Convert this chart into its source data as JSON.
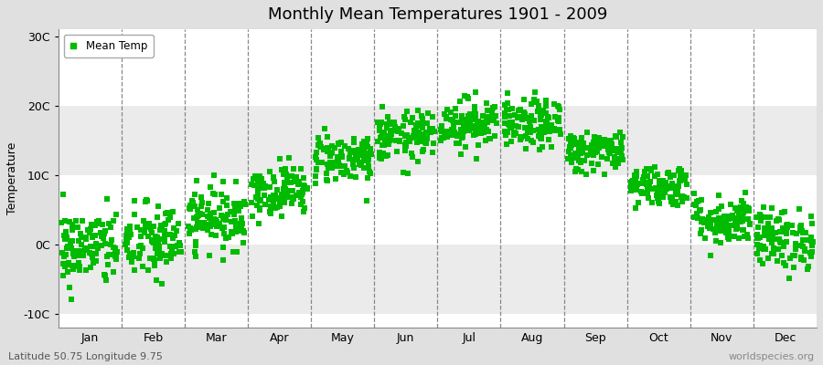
{
  "title": "Monthly Mean Temperatures 1901 - 2009",
  "ylabel": "Temperature",
  "xlabel_bottom_left": "Latitude 50.75 Longitude 9.75",
  "xlabel_bottom_right": "worldspecies.org",
  "legend_label": "Mean Temp",
  "marker_color": "#00BB00",
  "marker": "s",
  "marker_size": 4,
  "axes_bg_color": "#FFFFFF",
  "fig_bg_color": "#E0E0E0",
  "band_color": "#EBEBEB",
  "ylim": [
    -12,
    31
  ],
  "yticks": [
    -10,
    0,
    10,
    20,
    30
  ],
  "ytick_labels": [
    "-10C",
    "0C",
    "10C",
    "20C",
    "30C"
  ],
  "months": [
    "Jan",
    "Feb",
    "Mar",
    "Apr",
    "May",
    "Jun",
    "Jul",
    "Aug",
    "Sep",
    "Oct",
    "Nov",
    "Dec"
  ],
  "month_means": [
    -0.5,
    0.3,
    3.8,
    7.8,
    12.5,
    15.5,
    17.5,
    17.2,
    13.5,
    8.5,
    3.5,
    0.8
  ],
  "month_stds": [
    2.8,
    2.8,
    2.2,
    1.8,
    1.8,
    1.8,
    1.8,
    1.8,
    1.5,
    1.5,
    1.8,
    2.2
  ],
  "n_years": 109,
  "seed": 42
}
